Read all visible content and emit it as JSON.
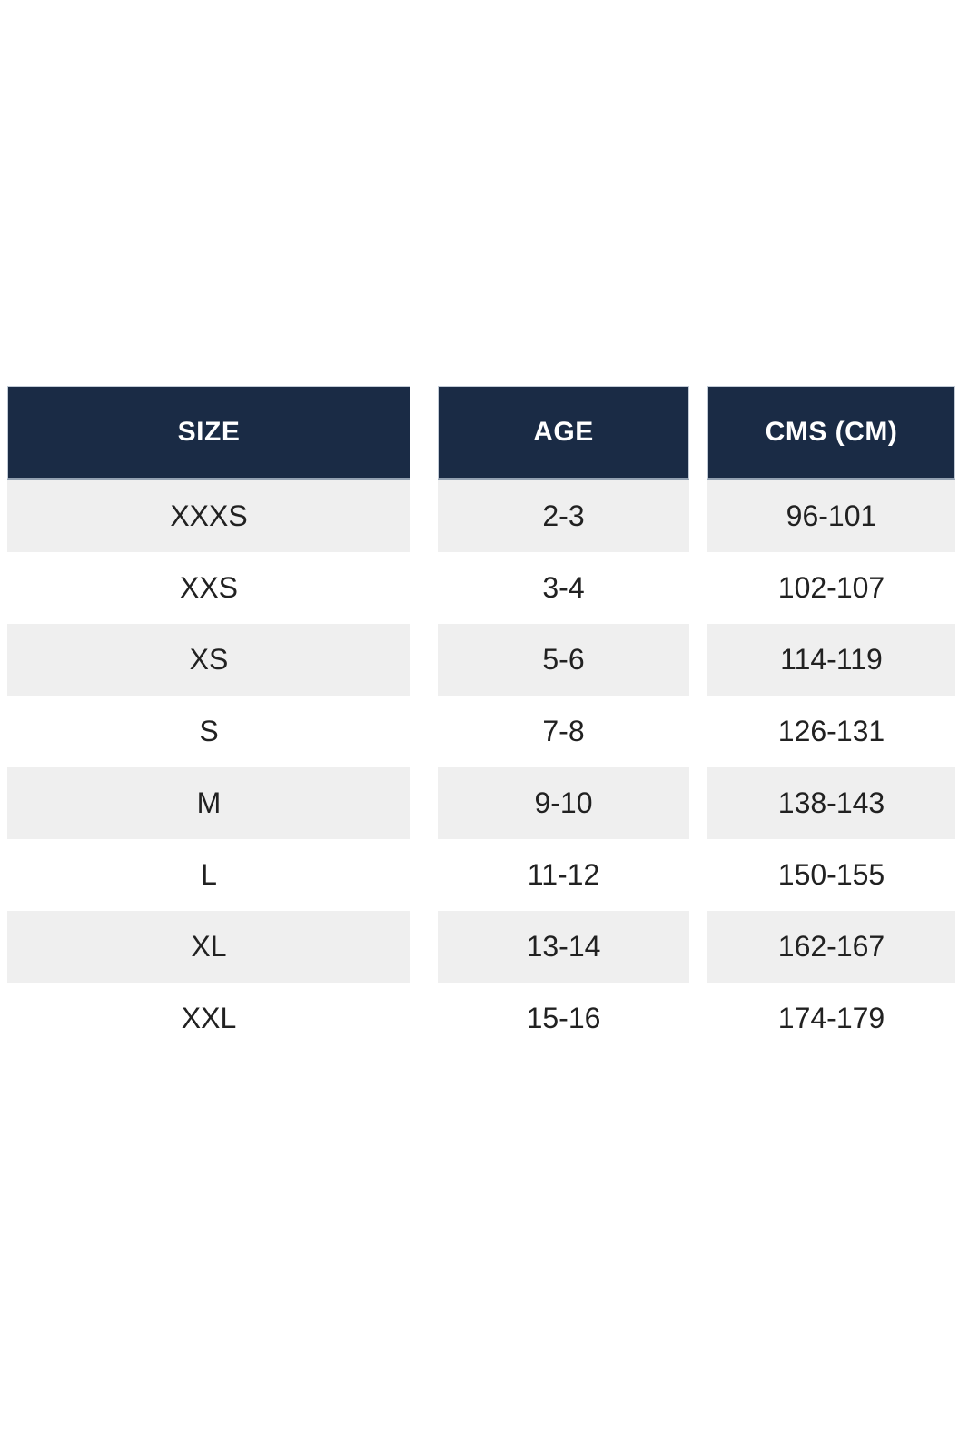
{
  "page": {
    "background_color": "#ffffff"
  },
  "size_chart": {
    "columns": [
      {
        "id": "size",
        "label": "SIZE"
      },
      {
        "id": "age",
        "label": "AGE"
      },
      {
        "id": "cms",
        "label": "CMS (CM)"
      }
    ],
    "rows": [
      {
        "size": "XXXS",
        "age": "2-3",
        "cms": "96-101"
      },
      {
        "size": "XXS",
        "age": "3-4",
        "cms": "102-107"
      },
      {
        "size": "XS",
        "age": "5-6",
        "cms": "114-119"
      },
      {
        "size": "S",
        "age": "7-8",
        "cms": "126-131"
      },
      {
        "size": "M",
        "age": "9-10",
        "cms": "138-143"
      },
      {
        "size": "L",
        "age": "11-12",
        "cms": "150-155"
      },
      {
        "size": "XL",
        "age": "13-14",
        "cms": "162-167"
      },
      {
        "size": "XXL",
        "age": "15-16",
        "cms": "174-179"
      }
    ],
    "colors": {
      "header_background": "#1a2b45",
      "header_text": "#ffffff",
      "row_stripe_background": "#efefef",
      "row_plain_background": "#ffffff",
      "cell_text": "#212121"
    }
  },
  "chart_data": {
    "type": "table",
    "columns": [
      "SIZE",
      "AGE",
      "CMS (CM)"
    ],
    "rows": [
      [
        "XXXS",
        "2-3",
        "96-101"
      ],
      [
        "XXS",
        "3-4",
        "102-107"
      ],
      [
        "XS",
        "5-6",
        "114-119"
      ],
      [
        "S",
        "7-8",
        "126-131"
      ],
      [
        "M",
        "9-10",
        "138-143"
      ],
      [
        "L",
        "11-12",
        "150-155"
      ],
      [
        "XL",
        "13-14",
        "162-167"
      ],
      [
        "XXL",
        "15-16",
        "174-179"
      ]
    ],
    "layout": {
      "striped_rows": true,
      "stripe_starts_at_first_data_row": true,
      "separate_column_blocks_with_white_gutters": true,
      "legend": "none",
      "grid": "off"
    }
  }
}
